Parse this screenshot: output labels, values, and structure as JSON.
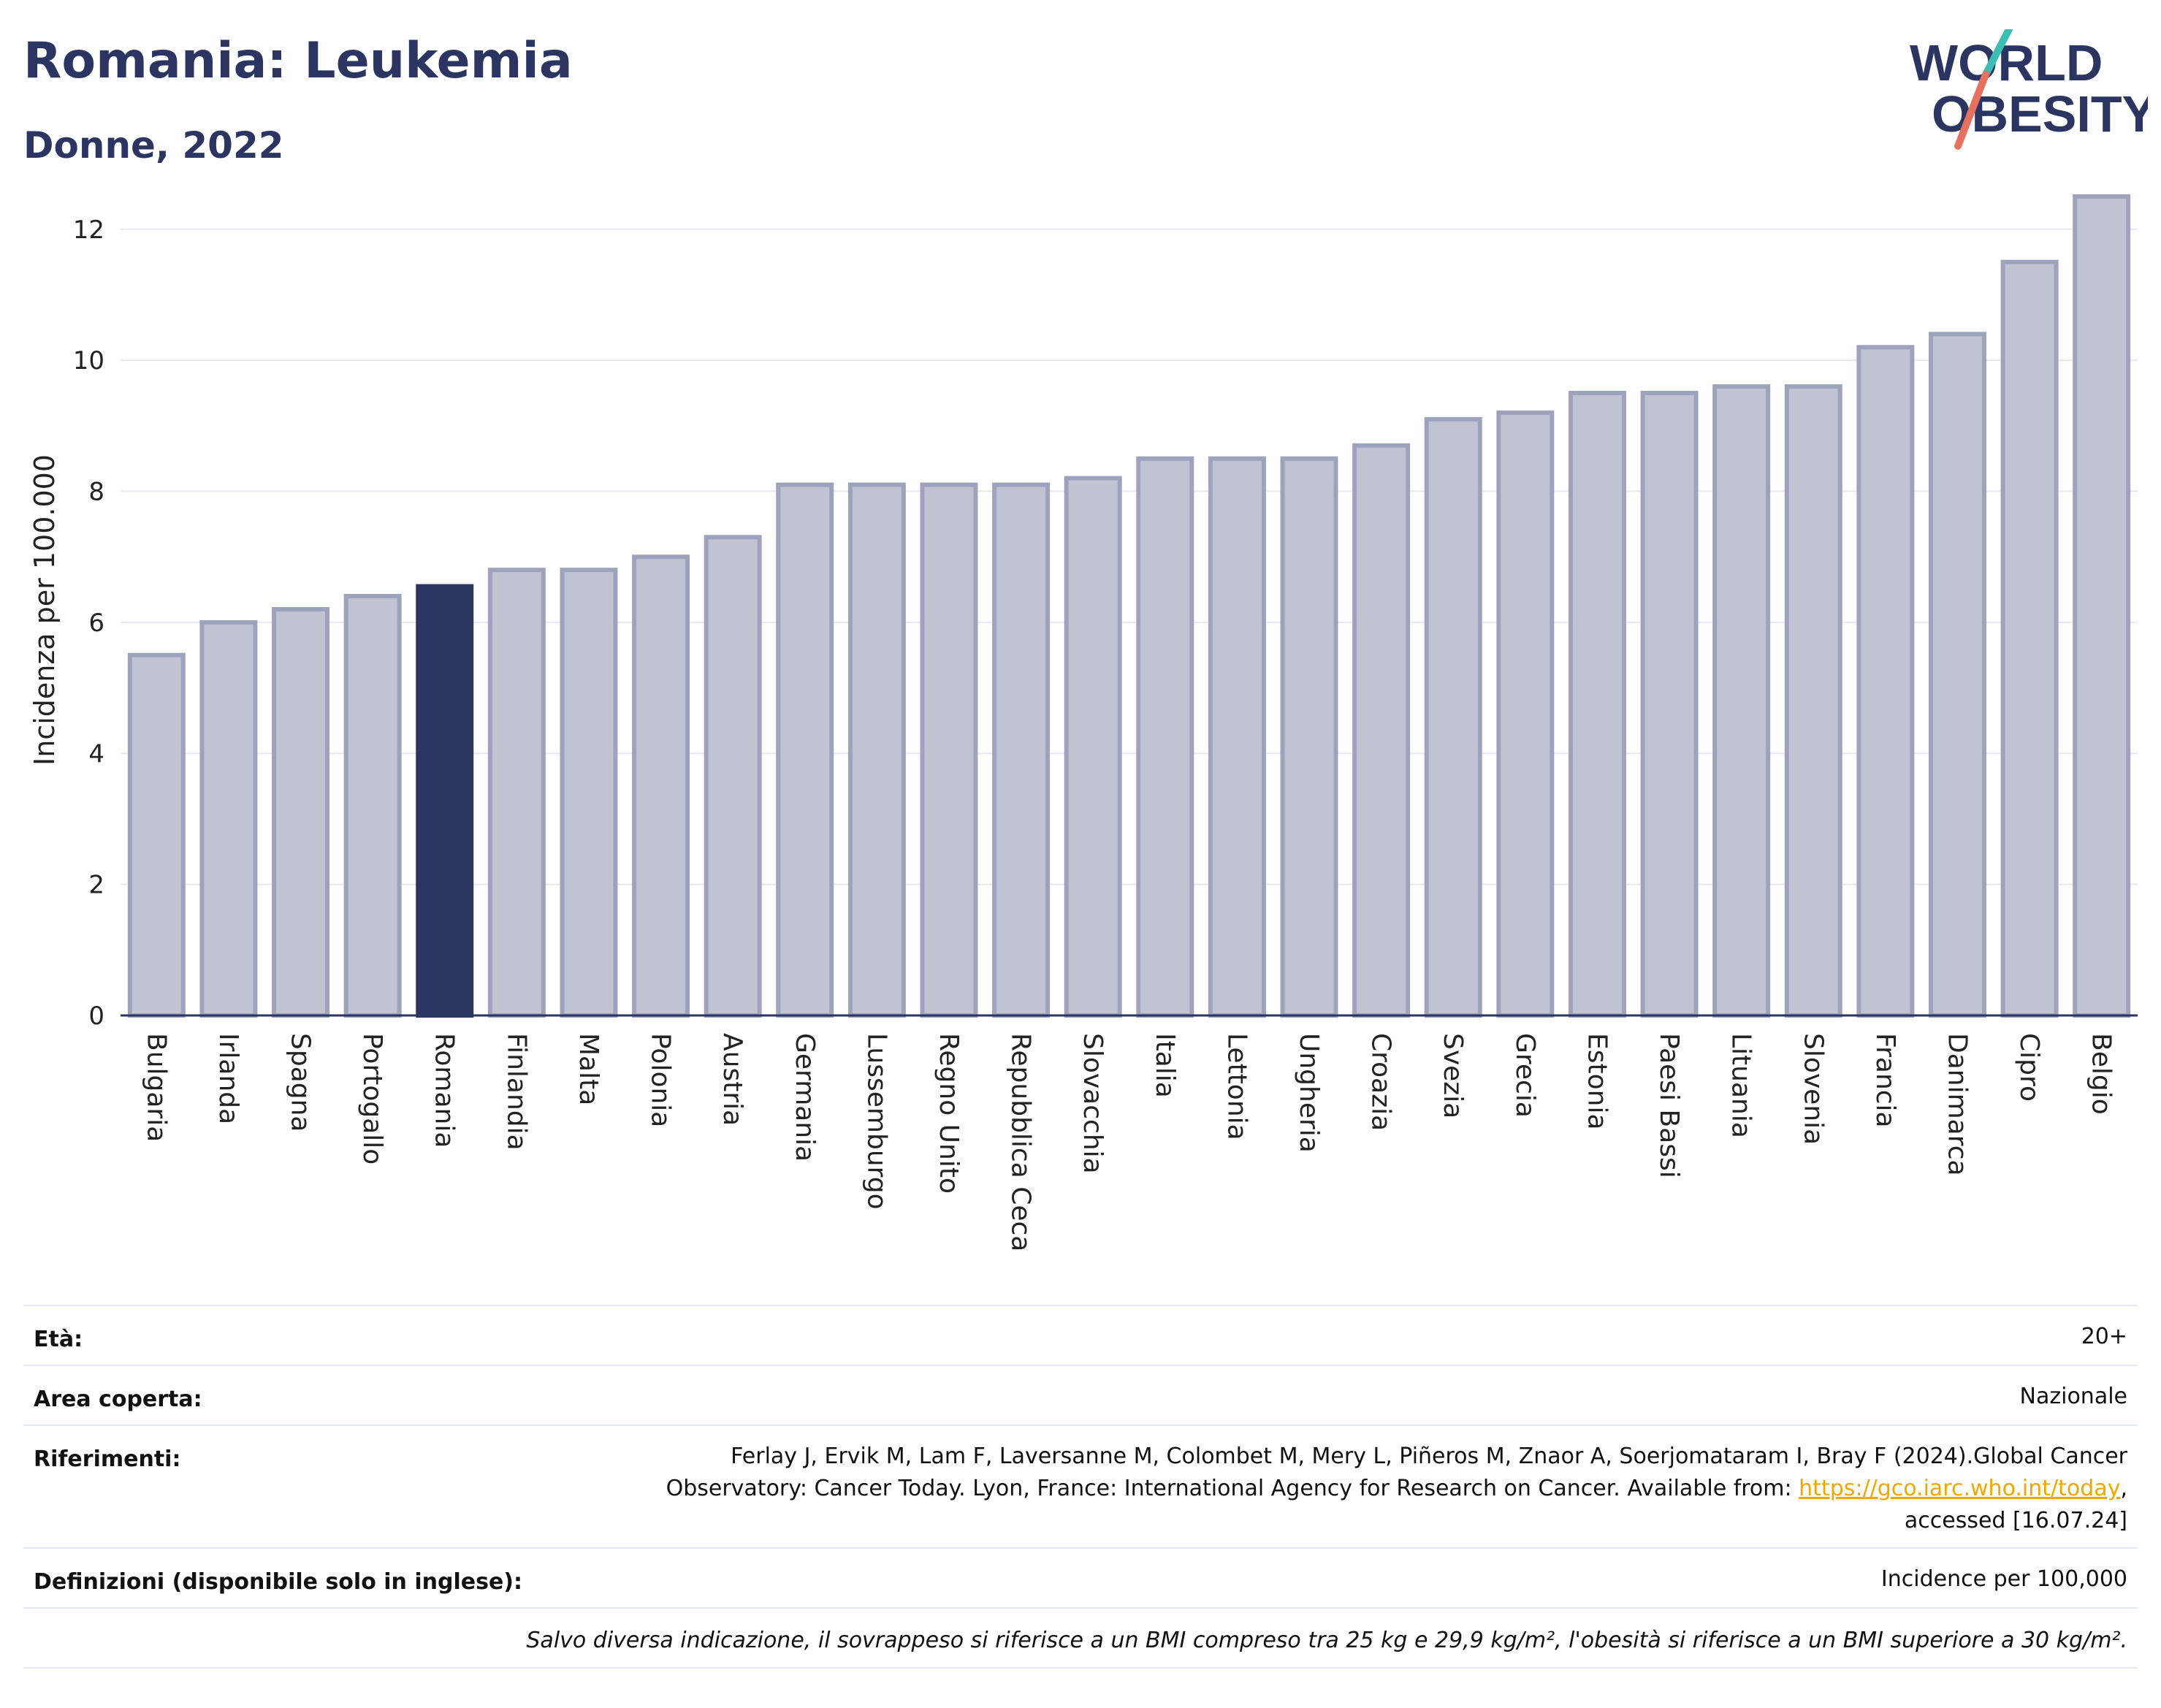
{
  "header": {
    "title": "Romania: Leukemia",
    "subtitle": "Donne, 2022"
  },
  "logo": {
    "line1": "WORLD",
    "line2": "OBESITY"
  },
  "chart_data": {
    "type": "bar",
    "ylabel": "Incidenza per 100.000",
    "ylim": [
      0,
      12.6
    ],
    "yticks": [
      0,
      2,
      4,
      6,
      8,
      10,
      12
    ],
    "grid": true,
    "highlight": "Romania",
    "categories": [
      "Bulgaria",
      "Irlanda",
      "Spagna",
      "Portogallo",
      "Romania",
      "Finlandia",
      "Malta",
      "Polonia",
      "Austria",
      "Germania",
      "Lussemburgo",
      "Regno Unito",
      "Repubblica Ceca",
      "Slovacchia",
      "Italia",
      "Lettonia",
      "Ungheria",
      "Croazia",
      "Svezia",
      "Grecia",
      "Estonia",
      "Paesi Bassi",
      "Lituania",
      "Slovenia",
      "Francia",
      "Danimarca",
      "Cipro",
      "Belgio"
    ],
    "values": [
      5.5,
      6.0,
      6.2,
      6.4,
      6.55,
      6.8,
      6.8,
      7.0,
      7.3,
      8.1,
      8.1,
      8.1,
      8.1,
      8.2,
      8.5,
      8.5,
      8.5,
      8.7,
      9.1,
      9.2,
      9.5,
      9.5,
      9.6,
      9.6,
      10.2,
      10.4,
      11.5,
      12.5
    ],
    "colors": {
      "bar": "#c0c4d2",
      "bar_border": "#9da3bc",
      "highlight": "#2b3561"
    }
  },
  "info": {
    "age_label": "Età:",
    "age_value": "20+",
    "area_label": "Area coperta:",
    "area_value": "Nazionale",
    "refs_label": "Riferimenti:",
    "refs_line1": "Ferlay J, Ervik M, Lam F, Laversanne M, Colombet M, Mery L, Piñeros M, Znaor A, Soerjomataram I, Bray F (2024).Global Cancer",
    "refs_line2": "Observatory: Cancer Today. Lyon, France: International Agency for Research on Cancer. Available from: ",
    "refs_link": "https://gco.iarc.who.int/today",
    "refs_line2_end": ",",
    "refs_line3": "accessed [16.07.24]",
    "defs_label": "Definizioni (disponibile solo in inglese):",
    "defs_value": "Incidence per 100,000",
    "note": "Salvo diversa indicazione, il sovrappeso si riferisce a un BMI compreso tra 25 kg e 29,9 kg/m², l'obesità si riferisce a un BMI superiore a 30 kg/m²."
  }
}
